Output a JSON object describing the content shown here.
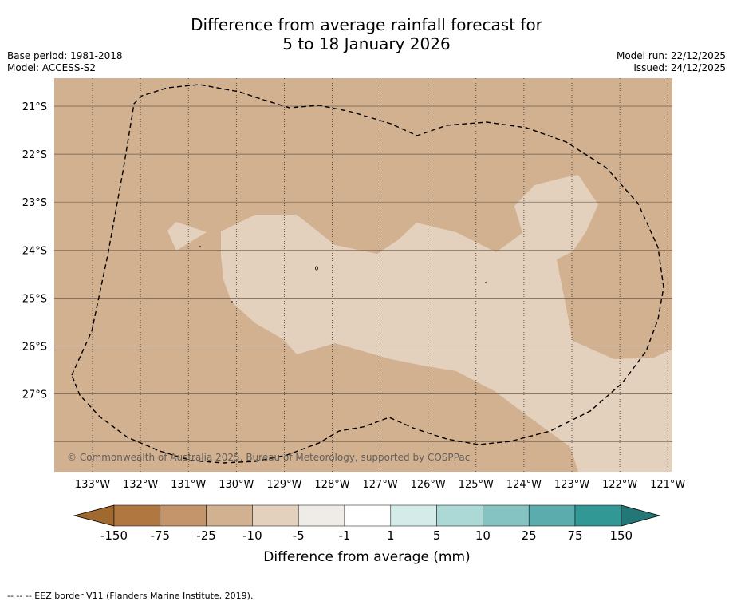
{
  "title": {
    "line1": "Difference from average rainfall forecast for",
    "line2": "5 to 18 January 2026"
  },
  "meta_left": {
    "base_period": "Base period: 1981-2018",
    "model": "Model: ACCESS-S2"
  },
  "meta_right": {
    "model_run": "Model run: 22/12/2025",
    "issued": "Issued: 24/12/2025"
  },
  "map": {
    "copyright": "© Commonwealth of Australia 2025, Bureau of Meteorology, supported by COSPPac",
    "lat_labels": [
      "21°S",
      "22°S",
      "23°S",
      "24°S",
      "25°S",
      "26°S",
      "27°S"
    ],
    "lon_labels": [
      "133°W",
      "132°W",
      "131°W",
      "130°W",
      "129°W",
      "128°W",
      "127°W",
      "126°W",
      "125°W",
      "124°W",
      "123°W",
      "122°W",
      "121°W"
    ],
    "region_colors": {
      "minus_25_to_minus_10": "#d2b190",
      "minus_10_to_minus_5": "#e3d0bd"
    }
  },
  "colorbar": {
    "title": "Difference from average (mm)",
    "tick_labels": [
      "-150",
      "-75",
      "-25",
      "-10",
      "-5",
      "-1",
      "1",
      "5",
      "10",
      "25",
      "75",
      "150"
    ],
    "colors": [
      "#a0692f",
      "#b07840",
      "#c4956b",
      "#d2b190",
      "#e3d0bd",
      "#efebe6",
      "#ffffff",
      "#d5ebe9",
      "#acd8d6",
      "#84c3c1",
      "#5aadac",
      "#329896",
      "#237777"
    ]
  },
  "footnote": "-- -- -- EEZ border V11 (Flanders Marine Institute, 2019)."
}
